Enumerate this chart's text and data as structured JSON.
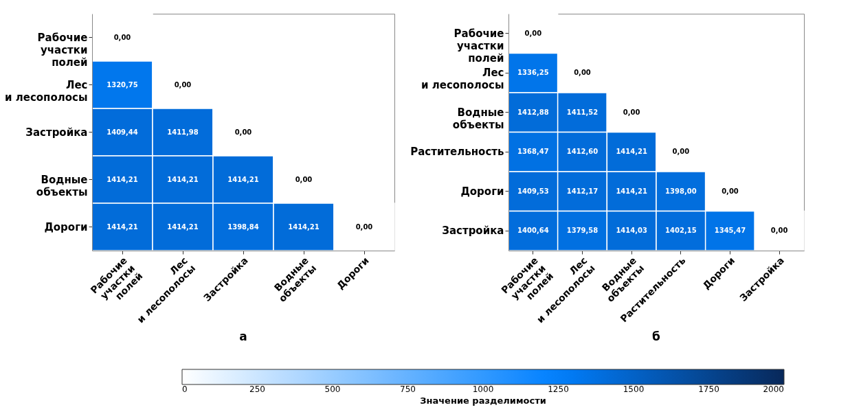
{
  "chart_data": [
    {
      "type": "heatmap",
      "title": "а",
      "clabel": "Значение разделимости",
      "clim": [
        0,
        2000
      ],
      "cticks": [
        0,
        250,
        500,
        750,
        1000,
        1250,
        1500,
        1750,
        2000
      ],
      "data_labels": true,
      "categories": [
        "Рабочие\nучастки\nполей",
        "Лес\nи лесополосы",
        "Застройка",
        "Водные\nобъекты",
        "Дороги"
      ],
      "y_categories": [
        "Рабочие\nучастки\nполей",
        "Лес\nи лесополосы",
        "Застройка",
        "Водные\nобъекты",
        "Дороги"
      ],
      "cells": [
        [
          0,
          null,
          null,
          null,
          null
        ],
        [
          1320.75,
          0,
          null,
          null,
          null
        ],
        [
          1409.44,
          1411.98,
          0,
          null,
          null
        ],
        [
          1414.21,
          1414.21,
          1414.21,
          0,
          null
        ],
        [
          1414.21,
          1414.21,
          1398.84,
          1414.21,
          0
        ]
      ],
      "cell_labels": [
        [
          "0,00",
          null,
          null,
          null,
          null
        ],
        [
          "1320,75",
          "0,00",
          null,
          null,
          null
        ],
        [
          "1409,44",
          "1411,98",
          "0,00",
          null,
          null
        ],
        [
          "1414,21",
          "1414,21",
          "1414,21",
          "0,00",
          null
        ],
        [
          "1414,21",
          "1414,21",
          "1398,84",
          "1414,21",
          "0,00"
        ]
      ]
    },
    {
      "type": "heatmap",
      "title": "б",
      "data_labels": true,
      "categories": [
        "Рабочие\nучастки\nполей",
        "Лес\nи лесополосы",
        "Водные\nобъекты",
        "Растительность",
        "Дороги",
        "Застройка"
      ],
      "y_categories": [
        "Рабочие\nучастки\nполей",
        "Лес\nи лесополосы",
        "Водные\nобъекты",
        "Растительность",
        "Дороги",
        "Застройка"
      ],
      "cells": [
        [
          0,
          null,
          null,
          null,
          null,
          null
        ],
        [
          1336.25,
          0,
          null,
          null,
          null,
          null
        ],
        [
          1412.88,
          1411.52,
          0,
          null,
          null,
          null
        ],
        [
          1368.47,
          1412.6,
          1414.21,
          0,
          null,
          null
        ],
        [
          1409.53,
          1412.17,
          1414.21,
          1398.0,
          0,
          null
        ],
        [
          1400.64,
          1379.58,
          1414.03,
          1402.15,
          1345.47,
          0
        ]
      ],
      "cell_labels": [
        [
          "0,00",
          null,
          null,
          null,
          null,
          null
        ],
        [
          "1336,25",
          "0,00",
          null,
          null,
          null,
          null
        ],
        [
          "1412,88",
          "1411,52",
          "0,00",
          null,
          null,
          null
        ],
        [
          "1368,47",
          "1412,60",
          "1414,21",
          "0,00",
          null,
          null
        ],
        [
          "1409,53",
          "1412,17",
          "1414,21",
          "1398,00",
          "0,00",
          null
        ],
        [
          "1400,64",
          "1379,58",
          "1414,03",
          "1402,15",
          "1345,47",
          "0,00"
        ]
      ]
    }
  ]
}
